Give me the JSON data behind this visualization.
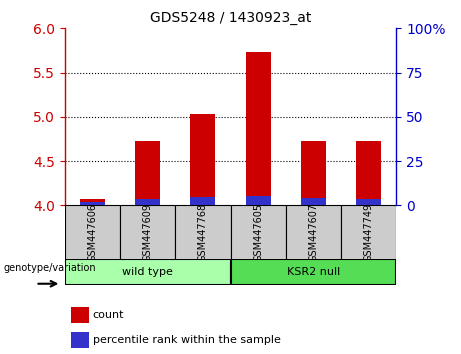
{
  "title": "GDS5248 / 1430923_at",
  "categories": [
    "GSM447606",
    "GSM447609",
    "GSM447768",
    "GSM447605",
    "GSM447607",
    "GSM447749"
  ],
  "bar_base": 4.0,
  "red_tops": [
    4.07,
    4.73,
    5.03,
    5.73,
    4.73,
    4.73
  ],
  "blue_heights": [
    0.04,
    0.07,
    0.09,
    0.11,
    0.08,
    0.07
  ],
  "ylim_left": [
    4.0,
    6.0
  ],
  "yticks_left": [
    4.0,
    4.5,
    5.0,
    5.5,
    6.0
  ],
  "ylim_right": [
    0,
    100
  ],
  "yticks_right": [
    0,
    25,
    50,
    75,
    100
  ],
  "ytick_labels_right": [
    "0",
    "25",
    "50",
    "75",
    "100%"
  ],
  "red_color": "#cc0000",
  "blue_color": "#3333cc",
  "bar_width": 0.45,
  "wild_type_color": "#aaffaa",
  "ksr2_null_color": "#55dd55",
  "label_bg_color": "#cccccc",
  "legend_red_label": "count",
  "legend_blue_label": "percentile rank within the sample",
  "genotype_label": "genotype/variation",
  "wild_type_label": "wild type",
  "ksr2_null_label": "KSR2 null"
}
